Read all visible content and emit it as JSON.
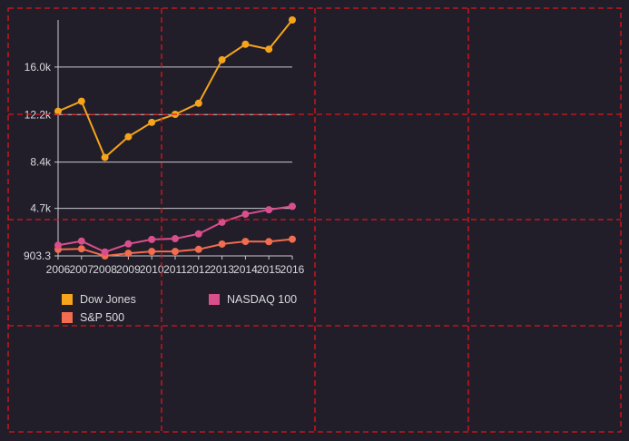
{
  "chart_data": {
    "type": "line",
    "x": [
      "2006",
      "2007",
      "2008",
      "2009",
      "2010",
      "2011",
      "2012",
      "2013",
      "2014",
      "2015",
      "2016"
    ],
    "series": [
      {
        "name": "Dow Jones",
        "color": "#f5a41b",
        "values": [
          12463,
          13265,
          8776,
          10428,
          11578,
          12218,
          13104,
          16577,
          17823,
          17425,
          19763
        ]
      },
      {
        "name": "S&P 500",
        "color": "#f26c4f",
        "values": [
          1418,
          1468,
          903.3,
          1115,
          1258,
          1258,
          1426,
          1848,
          2059,
          2044,
          2239
        ]
      },
      {
        "name": "NASDAQ 100",
        "color": "#d94f8c",
        "values": [
          1756,
          2085,
          1211,
          1860,
          2218,
          2278,
          2660,
          3592,
          4236,
          4593,
          4863
        ]
      }
    ],
    "y_ticks": [
      "903.3",
      "4.7k",
      "8.4k",
      "12.2k",
      "16.0k"
    ],
    "y_tick_values": [
      903.3,
      4700,
      8400,
      12200,
      16000
    ],
    "ylim": [
      903.3,
      19763
    ],
    "grid": true,
    "legend": "bottom"
  }
}
